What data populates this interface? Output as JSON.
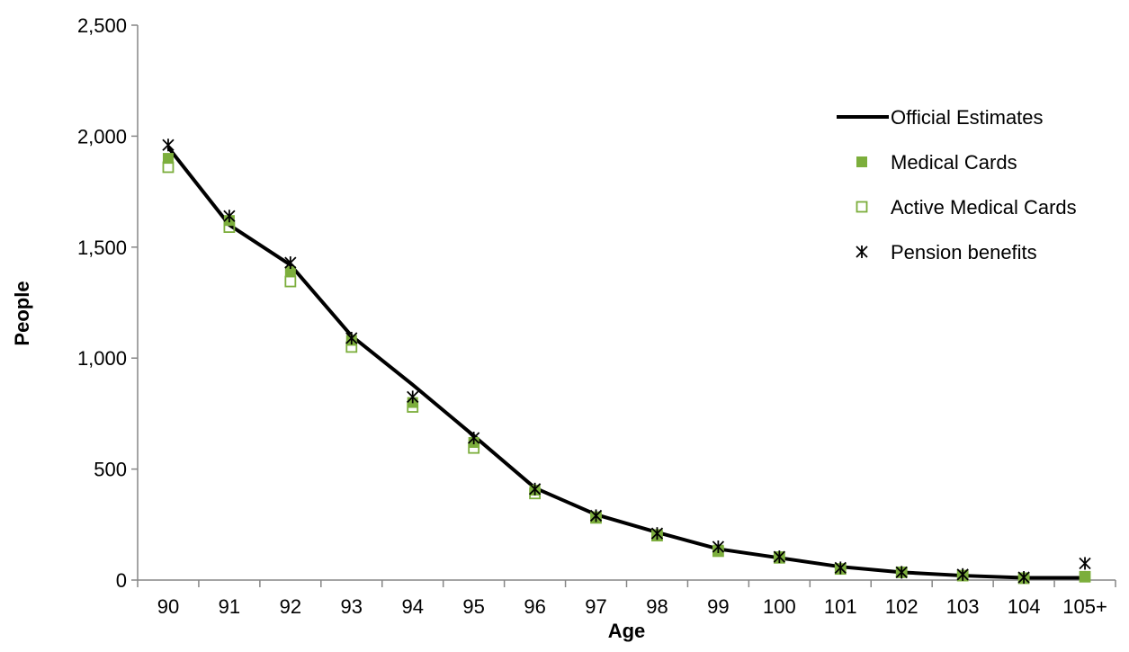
{
  "chart_data": {
    "type": "line",
    "title": "",
    "xlabel": "Age",
    "ylabel": "People",
    "categories": [
      "90",
      "91",
      "92",
      "93",
      "94",
      "95",
      "96",
      "97",
      "98",
      "99",
      "100",
      "101",
      "102",
      "103",
      "104",
      "105+"
    ],
    "ylim": [
      0,
      2500
    ],
    "y_ticks": [
      0,
      500,
      1000,
      1500,
      2000,
      2500
    ],
    "y_tick_labels": [
      "0",
      "500",
      "1,000",
      "1,500",
      "2,000",
      "2,500"
    ],
    "grid": false,
    "legend_position": "top-right",
    "series": [
      {
        "name": "Official Estimates",
        "marker": "line",
        "color": "#000000",
        "values": [
          1950,
          1600,
          1420,
          1100,
          880,
          650,
          415,
          295,
          215,
          140,
          100,
          60,
          35,
          20,
          10,
          10
        ]
      },
      {
        "name": "Medical Cards",
        "marker": "filled-square",
        "color": "#7cae3c",
        "values": [
          1900,
          1620,
          1390,
          1080,
          800,
          620,
          405,
          285,
          205,
          135,
          105,
          50,
          35,
          20,
          10,
          15
        ]
      },
      {
        "name": "Active Medical Cards",
        "marker": "hollow-square",
        "color": "#7cae3c",
        "values": [
          1860,
          1590,
          1345,
          1050,
          780,
          595,
          390,
          280,
          200,
          130,
          100,
          50,
          35,
          20,
          8,
          15
        ]
      },
      {
        "name": "Pension benefits",
        "marker": "asterisk",
        "color": "#000000",
        "values": [
          1960,
          1640,
          1430,
          1090,
          825,
          640,
          410,
          290,
          210,
          150,
          105,
          55,
          35,
          25,
          12,
          75
        ]
      }
    ]
  }
}
